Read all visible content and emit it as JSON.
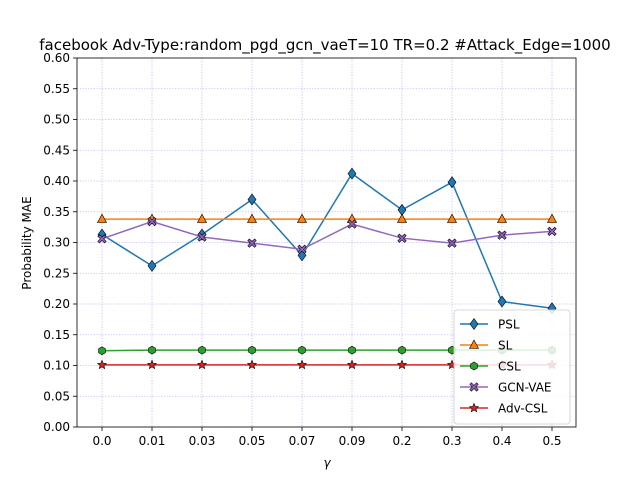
{
  "chart_data": {
    "type": "line",
    "title": "facebook Adv-Type:random_pgd_gcn_vaeT=10 TR=0.2 #Attack_Edge=1000",
    "xlabel": "γ",
    "ylabel": "Probability MAE",
    "categories": [
      "0.0",
      "0.01",
      "0.03",
      "0.05",
      "0.07",
      "0.09",
      "0.2",
      "0.3",
      "0.4",
      "0.5"
    ],
    "ylim": [
      0.0,
      0.6
    ],
    "yticks": [
      "0.00",
      "0.05",
      "0.10",
      "0.15",
      "0.20",
      "0.25",
      "0.30",
      "0.35",
      "0.40",
      "0.45",
      "0.50",
      "0.55",
      "0.60"
    ],
    "grid": true,
    "legend_position": "lower-right",
    "series": [
      {
        "name": "PSL",
        "color": "#1f77b4",
        "marker": "diamond",
        "values": [
          0.313,
          0.262,
          0.313,
          0.37,
          0.279,
          0.412,
          0.353,
          0.398,
          0.204,
          0.193
        ]
      },
      {
        "name": "SL",
        "color": "#ff7f0e",
        "marker": "triangle",
        "values": [
          0.338,
          0.338,
          0.338,
          0.338,
          0.338,
          0.338,
          0.338,
          0.338,
          0.338,
          0.338
        ]
      },
      {
        "name": "CSL",
        "color": "#2ca02c",
        "marker": "hexagon",
        "values": [
          0.124,
          0.125,
          0.125,
          0.125,
          0.125,
          0.125,
          0.125,
          0.125,
          0.125,
          0.125
        ]
      },
      {
        "name": "GCN-VAE",
        "color": "#9467bd",
        "marker": "x",
        "values": [
          0.306,
          0.334,
          0.309,
          0.299,
          0.289,
          0.33,
          0.307,
          0.299,
          0.312,
          0.318
        ]
      },
      {
        "name": "Adv-CSL",
        "color": "#d62728",
        "marker": "star",
        "values": [
          0.101,
          0.101,
          0.101,
          0.101,
          0.101,
          0.101,
          0.101,
          0.101,
          0.101,
          0.101
        ]
      }
    ]
  }
}
